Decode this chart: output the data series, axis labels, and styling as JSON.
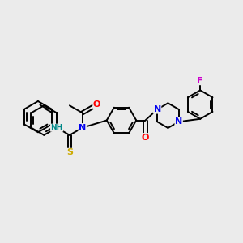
{
  "background_color": "#ebebeb",
  "atom_colors": {
    "N": "#0000ee",
    "O": "#ff0000",
    "S": "#ccaa00",
    "F": "#cc00cc",
    "C": "#000000",
    "H": "#008888"
  },
  "bond_color": "#000000",
  "bond_width": 1.4
}
